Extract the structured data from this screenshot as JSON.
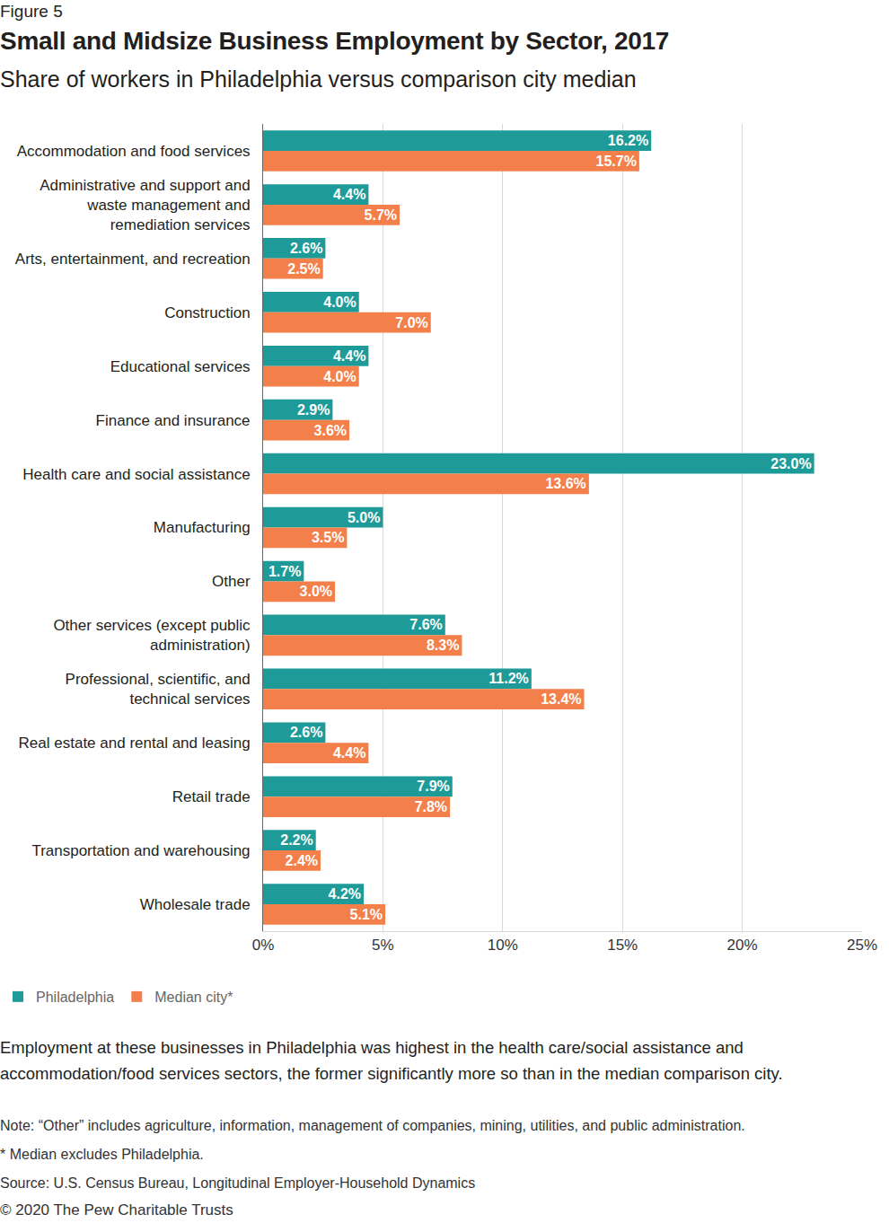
{
  "chart_data": {
    "type": "bar",
    "orientation": "horizontal",
    "figure_label": "Figure 5",
    "title": "Small and Midsize Business Employment by Sector, 2017",
    "subtitle": "Share of workers in Philadelphia versus comparison city median",
    "categories": [
      "Accommodation and food services",
      "Administrative and support and waste management and remediation services",
      "Arts, entertainment, and recreation",
      "Construction",
      "Educational services",
      "Finance and insurance",
      "Health care and social assistance",
      "Manufacturing",
      "Other",
      "Other services (except public administration)",
      "Professional, scientific, and technical services",
      "Real estate and rental and leasing",
      "Retail trade",
      "Transportation and warehousing",
      "Wholesale trade"
    ],
    "series": [
      {
        "name": "Philadelphia",
        "color": "#1e9b98",
        "values": [
          16.2,
          4.4,
          2.6,
          4.0,
          4.4,
          2.9,
          23.0,
          5.0,
          1.7,
          7.6,
          11.2,
          2.6,
          7.9,
          2.2,
          4.2
        ],
        "value_labels": [
          "16.2%",
          "4.4%",
          "2.6%",
          "4.0%",
          "4.4%",
          "2.9%",
          "23.0%",
          "5.0%",
          "1.7%",
          "7.6%",
          "11.2%",
          "2.6%",
          "7.9%",
          "2.2%",
          "4.2%"
        ]
      },
      {
        "name": "Median city*",
        "color": "#f3804a",
        "values": [
          15.7,
          5.7,
          2.5,
          7.0,
          4.0,
          3.6,
          13.6,
          3.5,
          3.0,
          8.3,
          13.4,
          4.4,
          7.8,
          2.4,
          5.1
        ],
        "value_labels": [
          "15.7%",
          "5.7%",
          "2.5%",
          "7.0%",
          "4.0%",
          "3.6%",
          "13.6%",
          "3.5%",
          "3.0%",
          "8.3%",
          "13.4%",
          "4.4%",
          "7.8%",
          "2.4%",
          "5.1%"
        ]
      }
    ],
    "xlim": [
      0,
      25
    ],
    "xticks": [
      {
        "value": 0,
        "label": "0%"
      },
      {
        "value": 5,
        "label": "5%"
      },
      {
        "value": 10,
        "label": "10%"
      },
      {
        "value": 15,
        "label": "15%"
      },
      {
        "value": 20,
        "label": "20%"
      },
      {
        "value": 25,
        "label": "25%"
      }
    ],
    "grid": true,
    "data_labels": true,
    "legend": "bottom left",
    "caption": "Employment at these businesses in Philadelphia was highest in the health care/social assistance and accommodation/food services sectors, the former significantly more so than in the median comparison city.",
    "notes": [
      "Note: “Other” includes agriculture, information, management of companies, mining, utilities, and public administration.",
      "* Median excludes Philadelphia.",
      "Source: U.S. Census Bureau, Longitudinal Employer-Household Dynamics"
    ],
    "copyright": "© 2020 The Pew Charitable Trusts"
  }
}
